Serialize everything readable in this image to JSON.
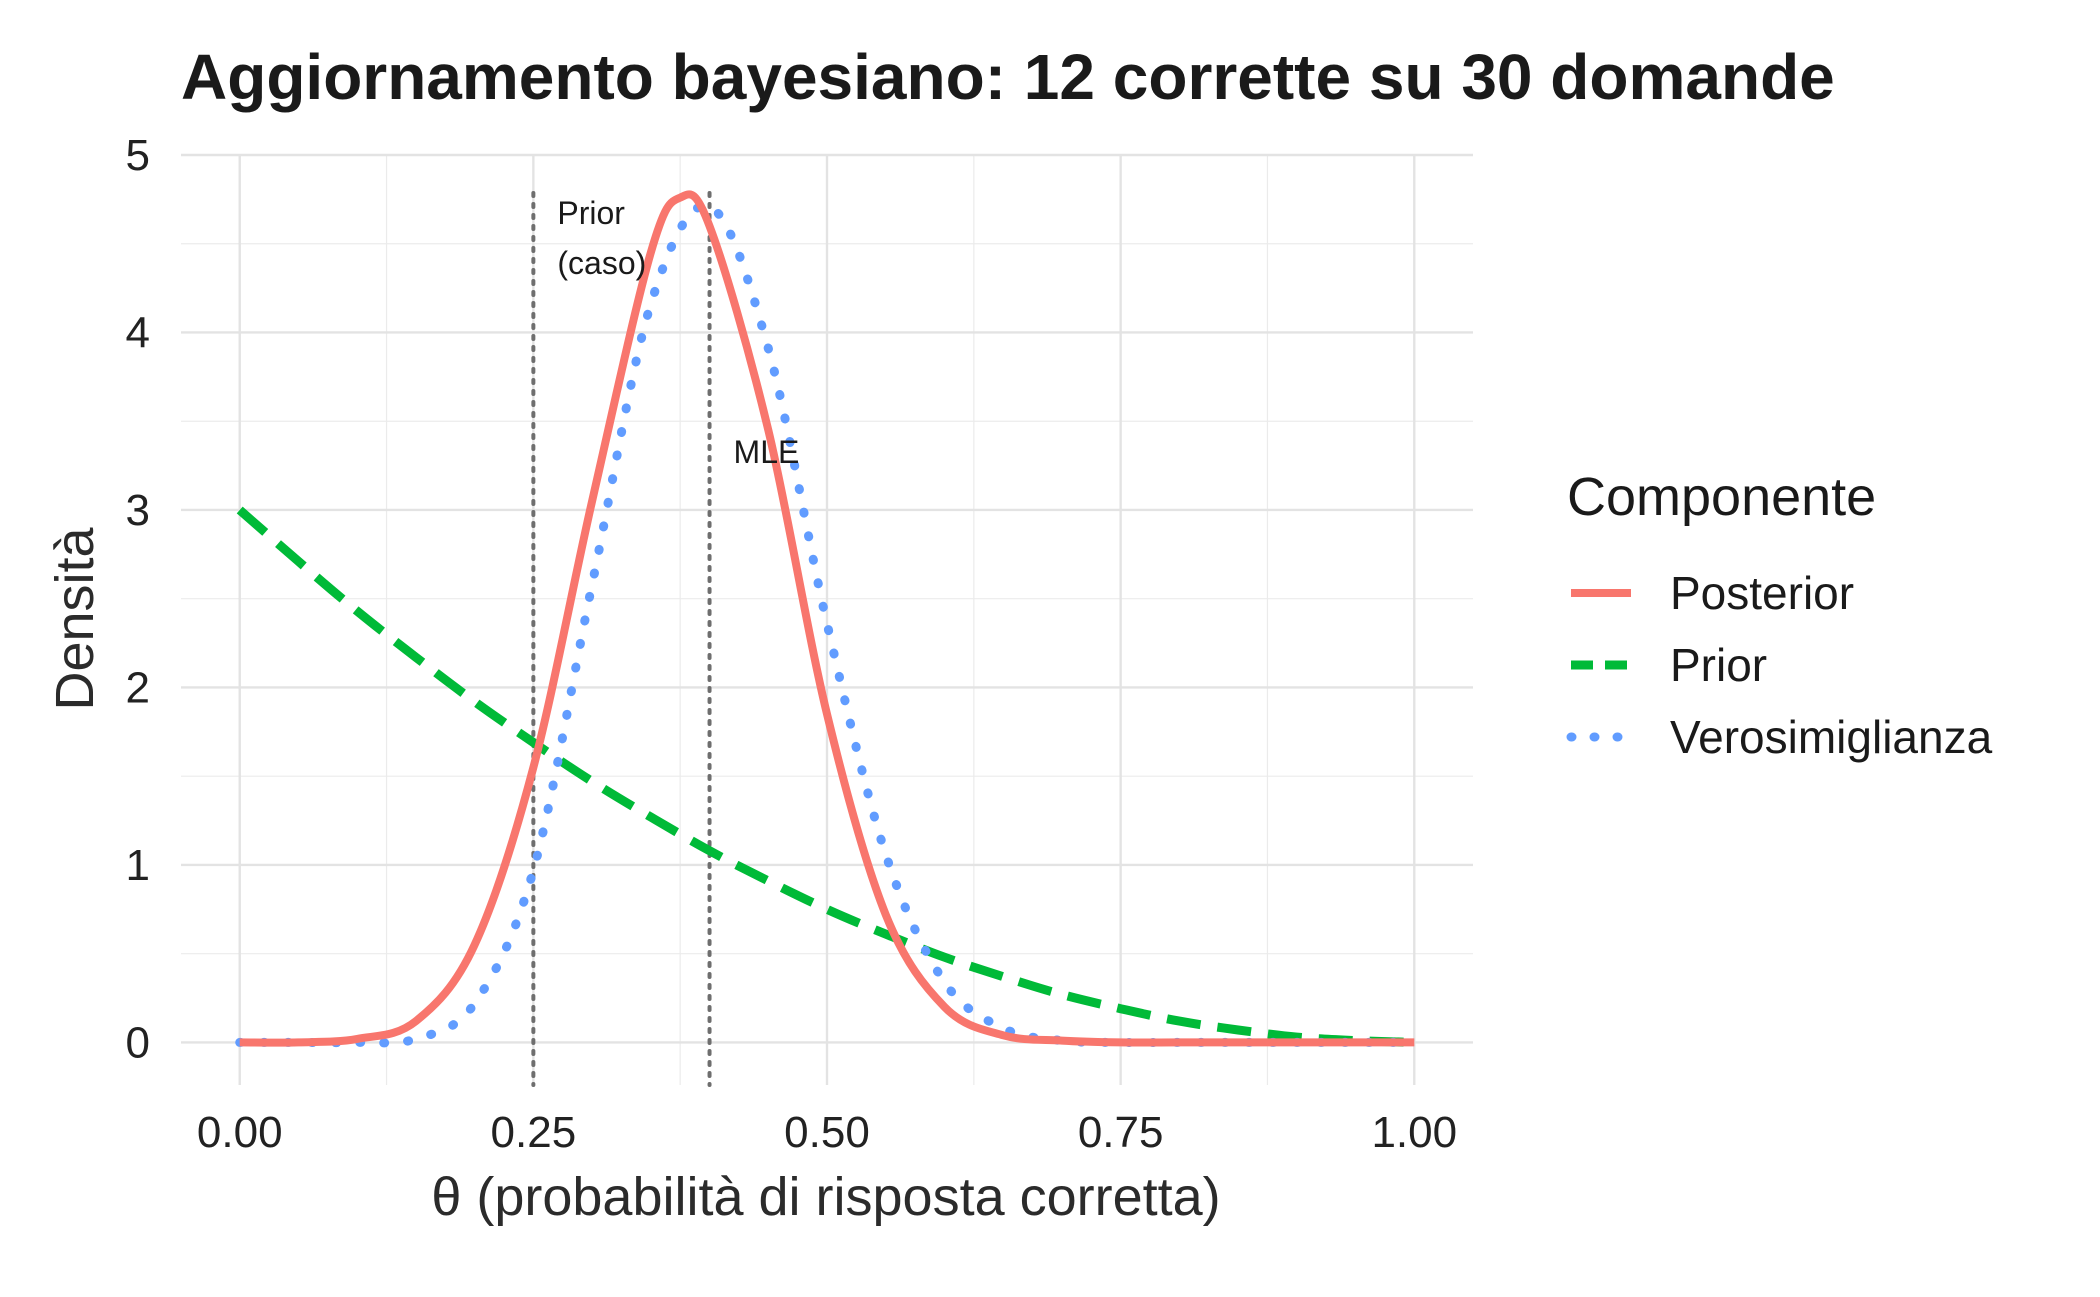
{
  "chart_data": {
    "type": "line",
    "title": "Aggiornamento bayesiano: 12 corrette su 30 domande",
    "xlabel": "θ (probabilità di risposta corretta)",
    "ylabel": "Densità",
    "xlim": [
      -0.05,
      1.05
    ],
    "ylim": [
      -0.24,
      5.0
    ],
    "x_ticks": [
      0,
      0.25,
      0.5,
      0.75,
      1
    ],
    "x_tick_labels": [
      "0.00",
      "0.25",
      "0.50",
      "0.75",
      "1.00"
    ],
    "y_ticks": [
      0,
      1,
      2,
      3,
      4,
      5
    ],
    "y_tick_labels": [
      "0",
      "1",
      "2",
      "3",
      "4",
      "5"
    ],
    "grid": true,
    "legend": {
      "title": "Componente",
      "position": "right",
      "entries": [
        "Posterior",
        "Prior",
        "Verosimiglianza"
      ]
    },
    "series": [
      {
        "name": "Posterior",
        "color": "#F8766D",
        "style": "solid",
        "x": [
          0.0,
          0.05,
          0.1,
          0.15,
          0.2,
          0.25,
          0.3,
          0.35,
          0.375,
          0.4,
          0.45,
          0.5,
          0.55,
          0.6,
          0.65,
          0.7,
          0.75,
          0.8,
          0.85,
          0.9,
          0.95,
          1.0
        ],
        "values": [
          0.0,
          0.0,
          0.02,
          0.12,
          0.55,
          1.55,
          3.05,
          4.45,
          4.76,
          4.6,
          3.45,
          1.85,
          0.72,
          0.2,
          0.04,
          0.01,
          0.0,
          0.0,
          0.0,
          0.0,
          0.0,
          0.0
        ]
      },
      {
        "name": "Prior",
        "color": "#00BA38",
        "style": "dashed",
        "x": [
          0.0,
          0.05,
          0.1,
          0.15,
          0.2,
          0.25,
          0.3,
          0.35,
          0.4,
          0.45,
          0.5,
          0.55,
          0.6,
          0.65,
          0.7,
          0.75,
          0.8,
          0.85,
          0.9,
          0.95,
          1.0
        ],
        "values": [
          3.0,
          2.71,
          2.43,
          2.17,
          1.92,
          1.69,
          1.47,
          1.27,
          1.08,
          0.91,
          0.75,
          0.61,
          0.48,
          0.37,
          0.27,
          0.19,
          0.12,
          0.07,
          0.03,
          0.01,
          0.0
        ]
      },
      {
        "name": "Verosimiglianza",
        "color": "#619CFF",
        "style": "dotted",
        "x": [
          0.0,
          0.05,
          0.1,
          0.15,
          0.2,
          0.25,
          0.3,
          0.35,
          0.4,
          0.45,
          0.5,
          0.55,
          0.6,
          0.65,
          0.7,
          0.75,
          0.8,
          0.85,
          0.9,
          0.95,
          1.0
        ],
        "values": [
          0.0,
          0.0,
          0.0,
          0.02,
          0.22,
          0.97,
          2.58,
          4.16,
          4.71,
          3.91,
          2.36,
          1.06,
          0.34,
          0.08,
          0.01,
          0.0,
          0.0,
          0.0,
          0.0,
          0.0,
          0.0
        ]
      }
    ],
    "reference_lines": [
      {
        "x": 0.25,
        "label": [
          "Prior",
          "(caso)"
        ]
      },
      {
        "x": 0.4,
        "label": [
          "MLE"
        ]
      }
    ]
  }
}
